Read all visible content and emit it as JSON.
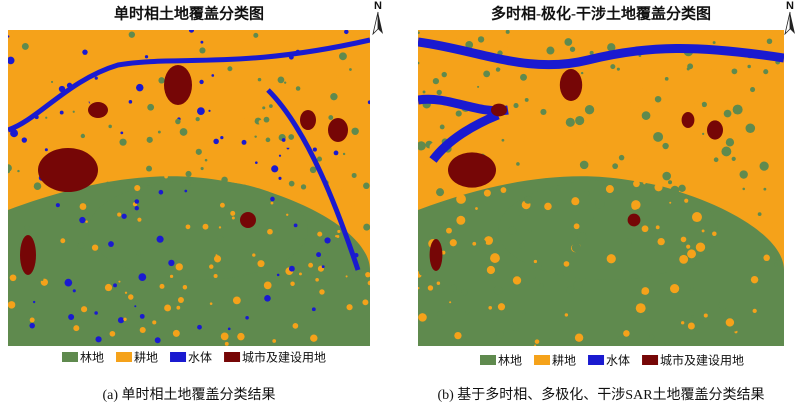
{
  "legend": [
    {
      "label": "林地",
      "color": "#5f8a4e"
    },
    {
      "label": "耕地",
      "color": "#f5a21a"
    },
    {
      "label": "水体",
      "color": "#1a1ad0"
    },
    {
      "label": "城市及建设用地",
      "color": "#760606"
    }
  ],
  "panels": [
    {
      "title": "单时相土地覆盖分类图",
      "north": "N",
      "caption": "(a) 单时相土地覆盖分类结果"
    },
    {
      "title": "多时相-极化-干涉土地覆盖分类图",
      "north": "N",
      "caption": "(b) 基于多时相、多极化、干涉SAR土地覆盖分类结果"
    }
  ]
}
